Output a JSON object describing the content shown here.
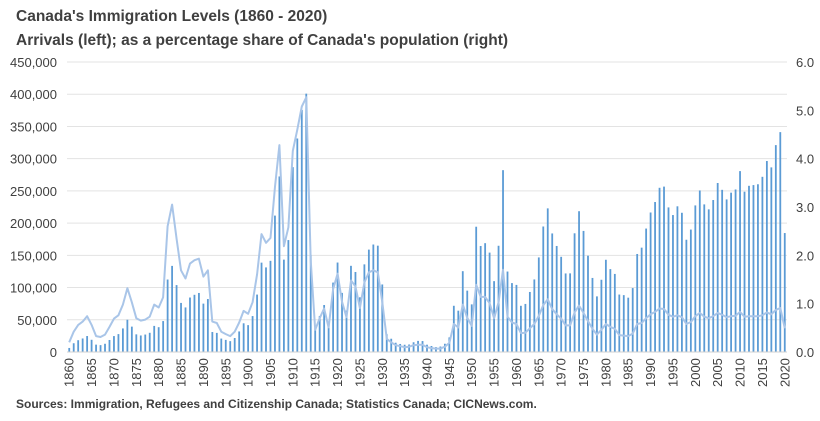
{
  "chart_data": {
    "type": "bar+line",
    "title": "Canada's Immigration Levels (1860 - 2020)",
    "subtitle": "Arrivals (left); as a percentage share of Canada's population (right)",
    "source": "Sources: Immigration, Refugees and Citizenship Canada;  Statistics Canada;  CICNews.com.",
    "x_start": 1860,
    "x_end": 2020,
    "x_tick_step": 5,
    "ylim_left": [
      0,
      450000
    ],
    "y_ticks_left": [
      "0",
      "50,000",
      "100,000",
      "150,000",
      "200,000",
      "250,000",
      "300,000",
      "350,000",
      "400,000",
      "450,000"
    ],
    "ylim_right": [
      0,
      6
    ],
    "y_ticks_right": [
      "0.0",
      "1.0",
      "2.0",
      "3.0",
      "4.0",
      "5.0",
      "6.0"
    ],
    "grid": "horizontal",
    "colors": {
      "bars": "#5b9bd5",
      "line": "#a9c5e8",
      "grid": "#e3e3e3"
    },
    "series": [
      {
        "axis": "left",
        "type": "bar",
        "values": [
          6276,
          13589,
          18294,
          21000,
          24779,
          18958,
          11427,
          10666,
          12765,
          18630,
          24706,
          27773,
          36578,
          50050,
          39373,
          27382,
          25633,
          27082,
          29807,
          40492,
          38505,
          47991,
          112458,
          133624,
          103824,
          76169,
          69152,
          84526,
          88766,
          91600,
          75067,
          82165,
          30996,
          29633,
          20829,
          18790,
          16835,
          21716,
          31900,
          44543,
          41681,
          55747,
          89102,
          138660,
          131252,
          141465,
          211653,
          272409,
          143326,
          173694,
          286839,
          331288,
          375756,
          400870,
          150484,
          36665,
          55914,
          72910,
          41845,
          107698,
          138824,
          91728,
          64224,
          133729,
          124164,
          84907,
          135982,
          158886,
          166783,
          164993,
          104806,
          27530,
          20591,
          14382,
          12476,
          11277,
          11643,
          15101,
          17244,
          16994,
          11324,
          9329,
          7576,
          8504,
          12801,
          22722,
          71719,
          64127,
          125414,
          95217,
          73912,
          194391,
          164498,
          168868,
          154227,
          109946,
          164857,
          282164,
          124851,
          106928,
          104111,
          71689,
          74586,
          93151,
          112606,
          146758,
          194743,
          222876,
          183974,
          164531,
          147713,
          121900,
          122006,
          184200,
          218465,
          187881,
          149429,
          114914,
          86313,
          112096,
          143117,
          128618,
          121147,
          89157,
          88239,
          84302,
          99219,
          152098,
          161929,
          191550,
          216452,
          232744,
          254817,
          256641,
          224364,
          212504,
          226073,
          216038,
          174195,
          189966,
          227458,
          250639,
          229048,
          221349,
          235824,
          262242,
          251640,
          236753,
          247243,
          252174,
          280691,
          248748,
          257887,
          259023,
          260282,
          271845,
          296346,
          286479,
          321035,
          341180,
          184595
        ]
      },
      {
        "axis": "right",
        "type": "line",
        "values": [
          0.2,
          0.42,
          0.56,
          0.63,
          0.74,
          0.56,
          0.33,
          0.31,
          0.36,
          0.52,
          0.69,
          0.76,
          0.98,
          1.32,
          1.03,
          0.7,
          0.65,
          0.67,
          0.73,
          0.98,
          0.92,
          1.13,
          2.6,
          3.05,
          2.34,
          1.69,
          1.52,
          1.83,
          1.9,
          1.93,
          1.56,
          1.69,
          0.63,
          0.6,
          0.42,
          0.37,
          0.33,
          0.42,
          0.61,
          0.85,
          0.79,
          1.03,
          1.61,
          2.44,
          2.26,
          2.36,
          3.42,
          4.28,
          2.19,
          2.58,
          4.16,
          4.6,
          5.08,
          5.27,
          1.9,
          0.46,
          0.7,
          0.9,
          0.51,
          1.3,
          1.62,
          1.04,
          0.72,
          1.48,
          1.36,
          0.91,
          1.44,
          1.65,
          1.69,
          1.65,
          1.03,
          0.27,
          0.2,
          0.14,
          0.12,
          0.1,
          0.11,
          0.14,
          0.15,
          0.15,
          0.1,
          0.08,
          0.07,
          0.07,
          0.11,
          0.19,
          0.58,
          0.51,
          0.98,
          0.71,
          0.54,
          1.39,
          1.14,
          1.14,
          1.01,
          0.7,
          1.03,
          1.7,
          0.73,
          0.61,
          0.58,
          0.39,
          0.4,
          0.49,
          0.58,
          0.75,
          0.97,
          1.09,
          0.89,
          0.78,
          0.69,
          0.55,
          0.55,
          0.82,
          0.96,
          0.81,
          0.64,
          0.48,
          0.36,
          0.46,
          0.58,
          0.52,
          0.48,
          0.35,
          0.34,
          0.33,
          0.38,
          0.58,
          0.6,
          0.7,
          0.78,
          0.83,
          0.9,
          0.89,
          0.77,
          0.73,
          0.76,
          0.72,
          0.58,
          0.62,
          0.74,
          0.81,
          0.73,
          0.7,
          0.74,
          0.81,
          0.77,
          0.72,
          0.74,
          0.75,
          0.83,
          0.73,
          0.74,
          0.74,
          0.74,
          0.76,
          0.82,
          0.78,
          0.87,
          0.91,
          0.49
        ]
      }
    ]
  }
}
